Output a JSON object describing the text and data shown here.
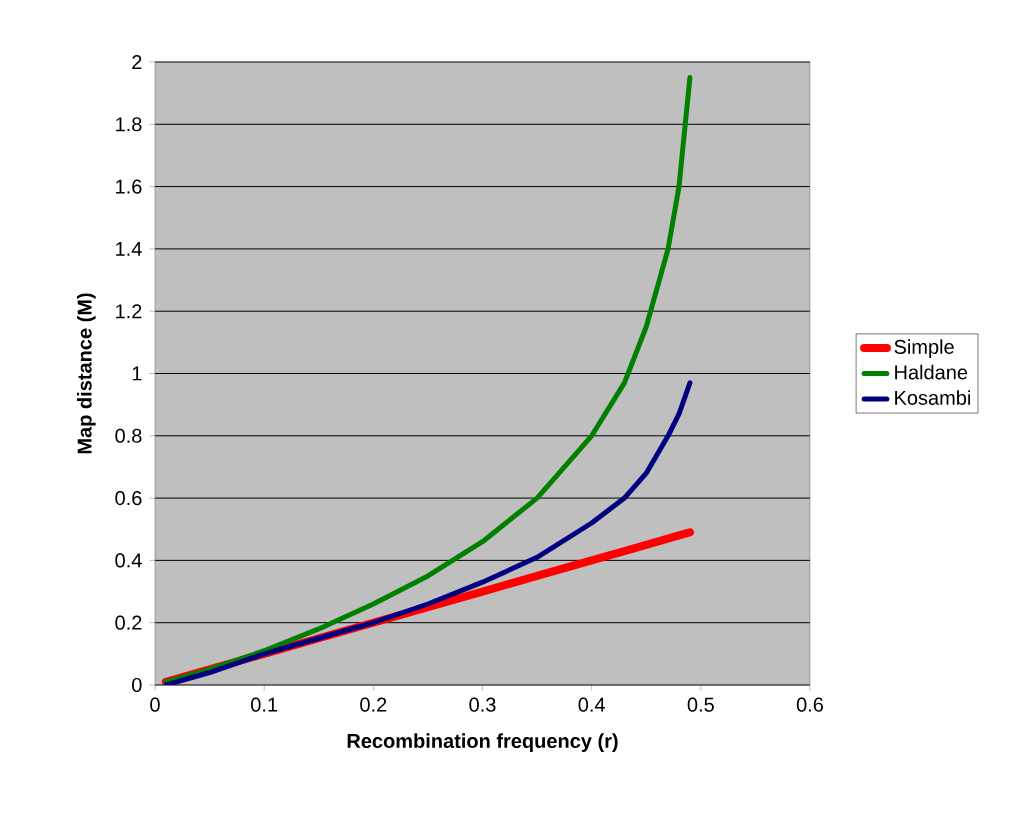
{
  "chart_data": {
    "type": "line",
    "xlabel": "Recombination frequency (r)",
    "ylabel": "Map distance (M)",
    "x": [
      0.01,
      0.05,
      0.1,
      0.15,
      0.2,
      0.25,
      0.3,
      0.35,
      0.4,
      0.43,
      0.45,
      0.47,
      0.48,
      0.49
    ],
    "series": [
      {
        "name": "Simple",
        "color": "#ff0000",
        "values": [
          0.01,
          0.05,
          0.1,
          0.15,
          0.2,
          0.25,
          0.3,
          0.35,
          0.4,
          0.43,
          0.45,
          0.47,
          0.48,
          0.49
        ]
      },
      {
        "name": "Haldane",
        "color": "#008000",
        "values": [
          0.01,
          0.05,
          0.11,
          0.18,
          0.26,
          0.35,
          0.46,
          0.6,
          0.8,
          0.97,
          1.15,
          1.4,
          1.6,
          1.95
        ]
      },
      {
        "name": "Kosambi",
        "color": "#000080",
        "values": [
          0.0,
          0.04,
          0.1,
          0.15,
          0.2,
          0.26,
          0.33,
          0.41,
          0.52,
          0.6,
          0.68,
          0.8,
          0.87,
          0.97
        ]
      }
    ],
    "xlim": [
      0,
      0.6
    ],
    "xticks": [
      0,
      0.1,
      0.2,
      0.3,
      0.4,
      0.5,
      0.6
    ],
    "ylim": [
      0,
      2
    ],
    "yticks": [
      0,
      0.2,
      0.4,
      0.6,
      0.8,
      1,
      1.2,
      1.4,
      1.6,
      1.8,
      2
    ],
    "grid": "y",
    "legend": "right",
    "marker": "none",
    "line_style": "solid"
  }
}
